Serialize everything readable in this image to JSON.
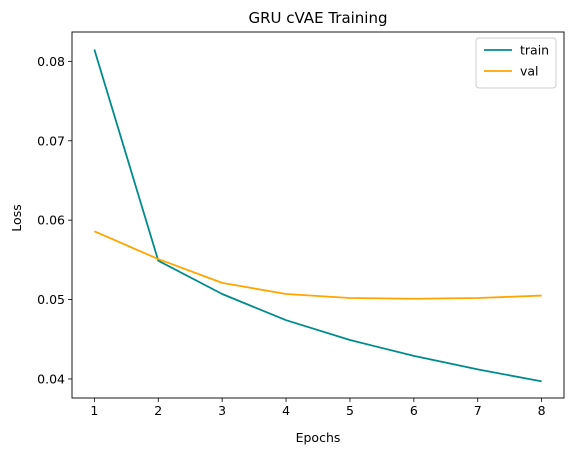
{
  "chart_data": {
    "type": "line",
    "title": "GRU cVAE Training",
    "xlabel": "Epochs",
    "ylabel": "Loss",
    "x": [
      1,
      2,
      3,
      4,
      5,
      6,
      7,
      8
    ],
    "series": [
      {
        "name": "train",
        "color": "#008b8b",
        "values": [
          0.0815,
          0.0549,
          0.0507,
          0.0474,
          0.0449,
          0.0429,
          0.0412,
          0.0397
        ]
      },
      {
        "name": "val",
        "color": "#ffa500",
        "values": [
          0.0586,
          0.0551,
          0.0521,
          0.0507,
          0.0502,
          0.0501,
          0.0502,
          0.0505
        ]
      }
    ],
    "xlim": [
      0.65,
      8.35
    ],
    "ylim": [
      0.0376,
      0.0837
    ],
    "xticks": [
      "1",
      "2",
      "3",
      "4",
      "5",
      "6",
      "7",
      "8"
    ],
    "yticks": [
      "0.04",
      "0.05",
      "0.06",
      "0.07",
      "0.08"
    ],
    "grid": false,
    "legend_position": "top-right"
  }
}
